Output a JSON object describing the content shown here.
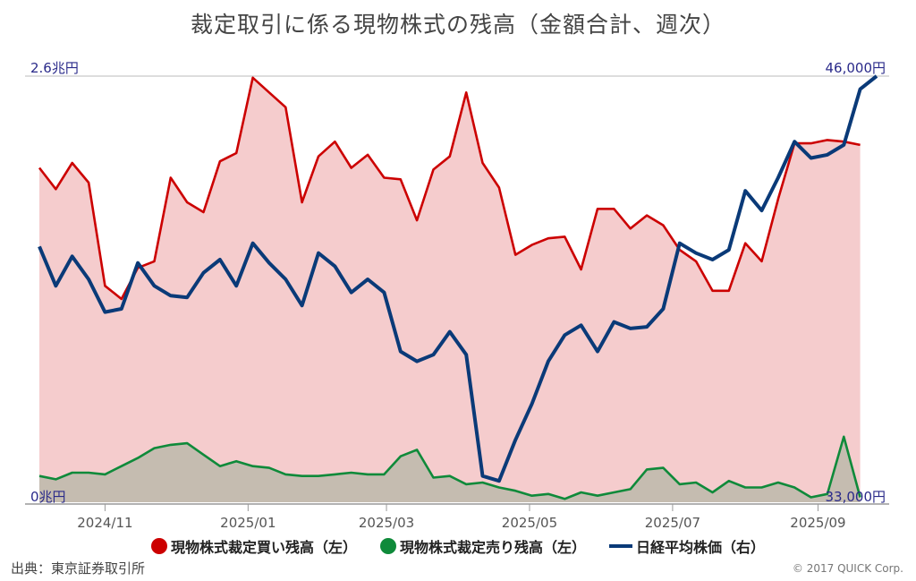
{
  "title": "裁定取引に係る現物株式の残高（金額合計、週次）",
  "source": "出典：東京証券取引所",
  "copyright": "© 2017 QUICK Corp.",
  "legend": {
    "buy": "現物株式裁定買い残高（左）",
    "sell": "現物株式裁定売り残高（左）",
    "nikkei": "日経平均株価（右）"
  },
  "colors": {
    "buy_line": "#cc0000",
    "buy_fill": "#f5cccd",
    "sell_line": "#0f8a3a",
    "sell_fill": "#c5bcb0",
    "nikkei_line": "#0a3a78",
    "axis_label": "#2a2a8a"
  },
  "chart_data": {
    "type": "line",
    "x_start": "2024-10-04",
    "x_step_days": 7,
    "x_ticks": [
      "2024/11",
      "2025/01",
      "2025/03",
      "2025/05",
      "2025/07",
      "2025/09"
    ],
    "left_axis": {
      "ylim": [
        0,
        2.6
      ],
      "top_label": "2.6兆円",
      "bottom_label": "0兆円"
    },
    "right_axis": {
      "ylim": [
        33000,
        46000
      ],
      "top_label": "46,000円",
      "bottom_label": "33,000円"
    },
    "series": [
      {
        "name": "現物株式裁定買い残高（左）",
        "axis": "left",
        "values": [
          2.04,
          1.91,
          2.07,
          1.95,
          1.32,
          1.24,
          1.43,
          1.47,
          1.98,
          1.83,
          1.77,
          2.08,
          2.13,
          2.59,
          2.5,
          2.41,
          1.83,
          2.11,
          2.2,
          2.04,
          2.12,
          1.98,
          1.97,
          1.72,
          2.03,
          2.11,
          2.5,
          2.07,
          1.92,
          1.51,
          1.57,
          1.61,
          1.62,
          1.42,
          1.79,
          1.79,
          1.67,
          1.75,
          1.69,
          1.54,
          1.47,
          1.29,
          1.29,
          1.58,
          1.47,
          1.85,
          2.19,
          2.19,
          2.21,
          2.2,
          2.18
        ]
      },
      {
        "name": "現物株式裁定売り残高（左）",
        "axis": "left",
        "values": [
          0.16,
          0.14,
          0.18,
          0.18,
          0.17,
          0.22,
          0.27,
          0.33,
          0.35,
          0.36,
          0.29,
          0.22,
          0.25,
          0.22,
          0.21,
          0.17,
          0.16,
          0.16,
          0.17,
          0.18,
          0.17,
          0.17,
          0.28,
          0.32,
          0.15,
          0.16,
          0.11,
          0.12,
          0.09,
          0.07,
          0.04,
          0.05,
          0.02,
          0.06,
          0.04,
          0.06,
          0.08,
          0.2,
          0.21,
          0.11,
          0.12,
          0.06,
          0.13,
          0.09,
          0.09,
          0.12,
          0.09,
          0.03,
          0.05,
          0.4,
          0.03
        ]
      },
      {
        "name": "日経平均株価（右）",
        "axis": "right",
        "values": [
          40800,
          39600,
          40500,
          39800,
          38800,
          38900,
          40300,
          39600,
          39300,
          39250,
          40000,
          40400,
          39600,
          40900,
          40300,
          39800,
          39000,
          40600,
          40200,
          39400,
          39800,
          39400,
          37600,
          37300,
          37500,
          38200,
          37500,
          33800,
          33650,
          34900,
          36000,
          37300,
          38100,
          38400,
          37600,
          38500,
          38300,
          38350,
          38900,
          40900,
          40600,
          40400,
          40700,
          42500,
          41900,
          42900,
          44000,
          43500,
          43600,
          43900,
          45600,
          46000
        ]
      }
    ]
  }
}
